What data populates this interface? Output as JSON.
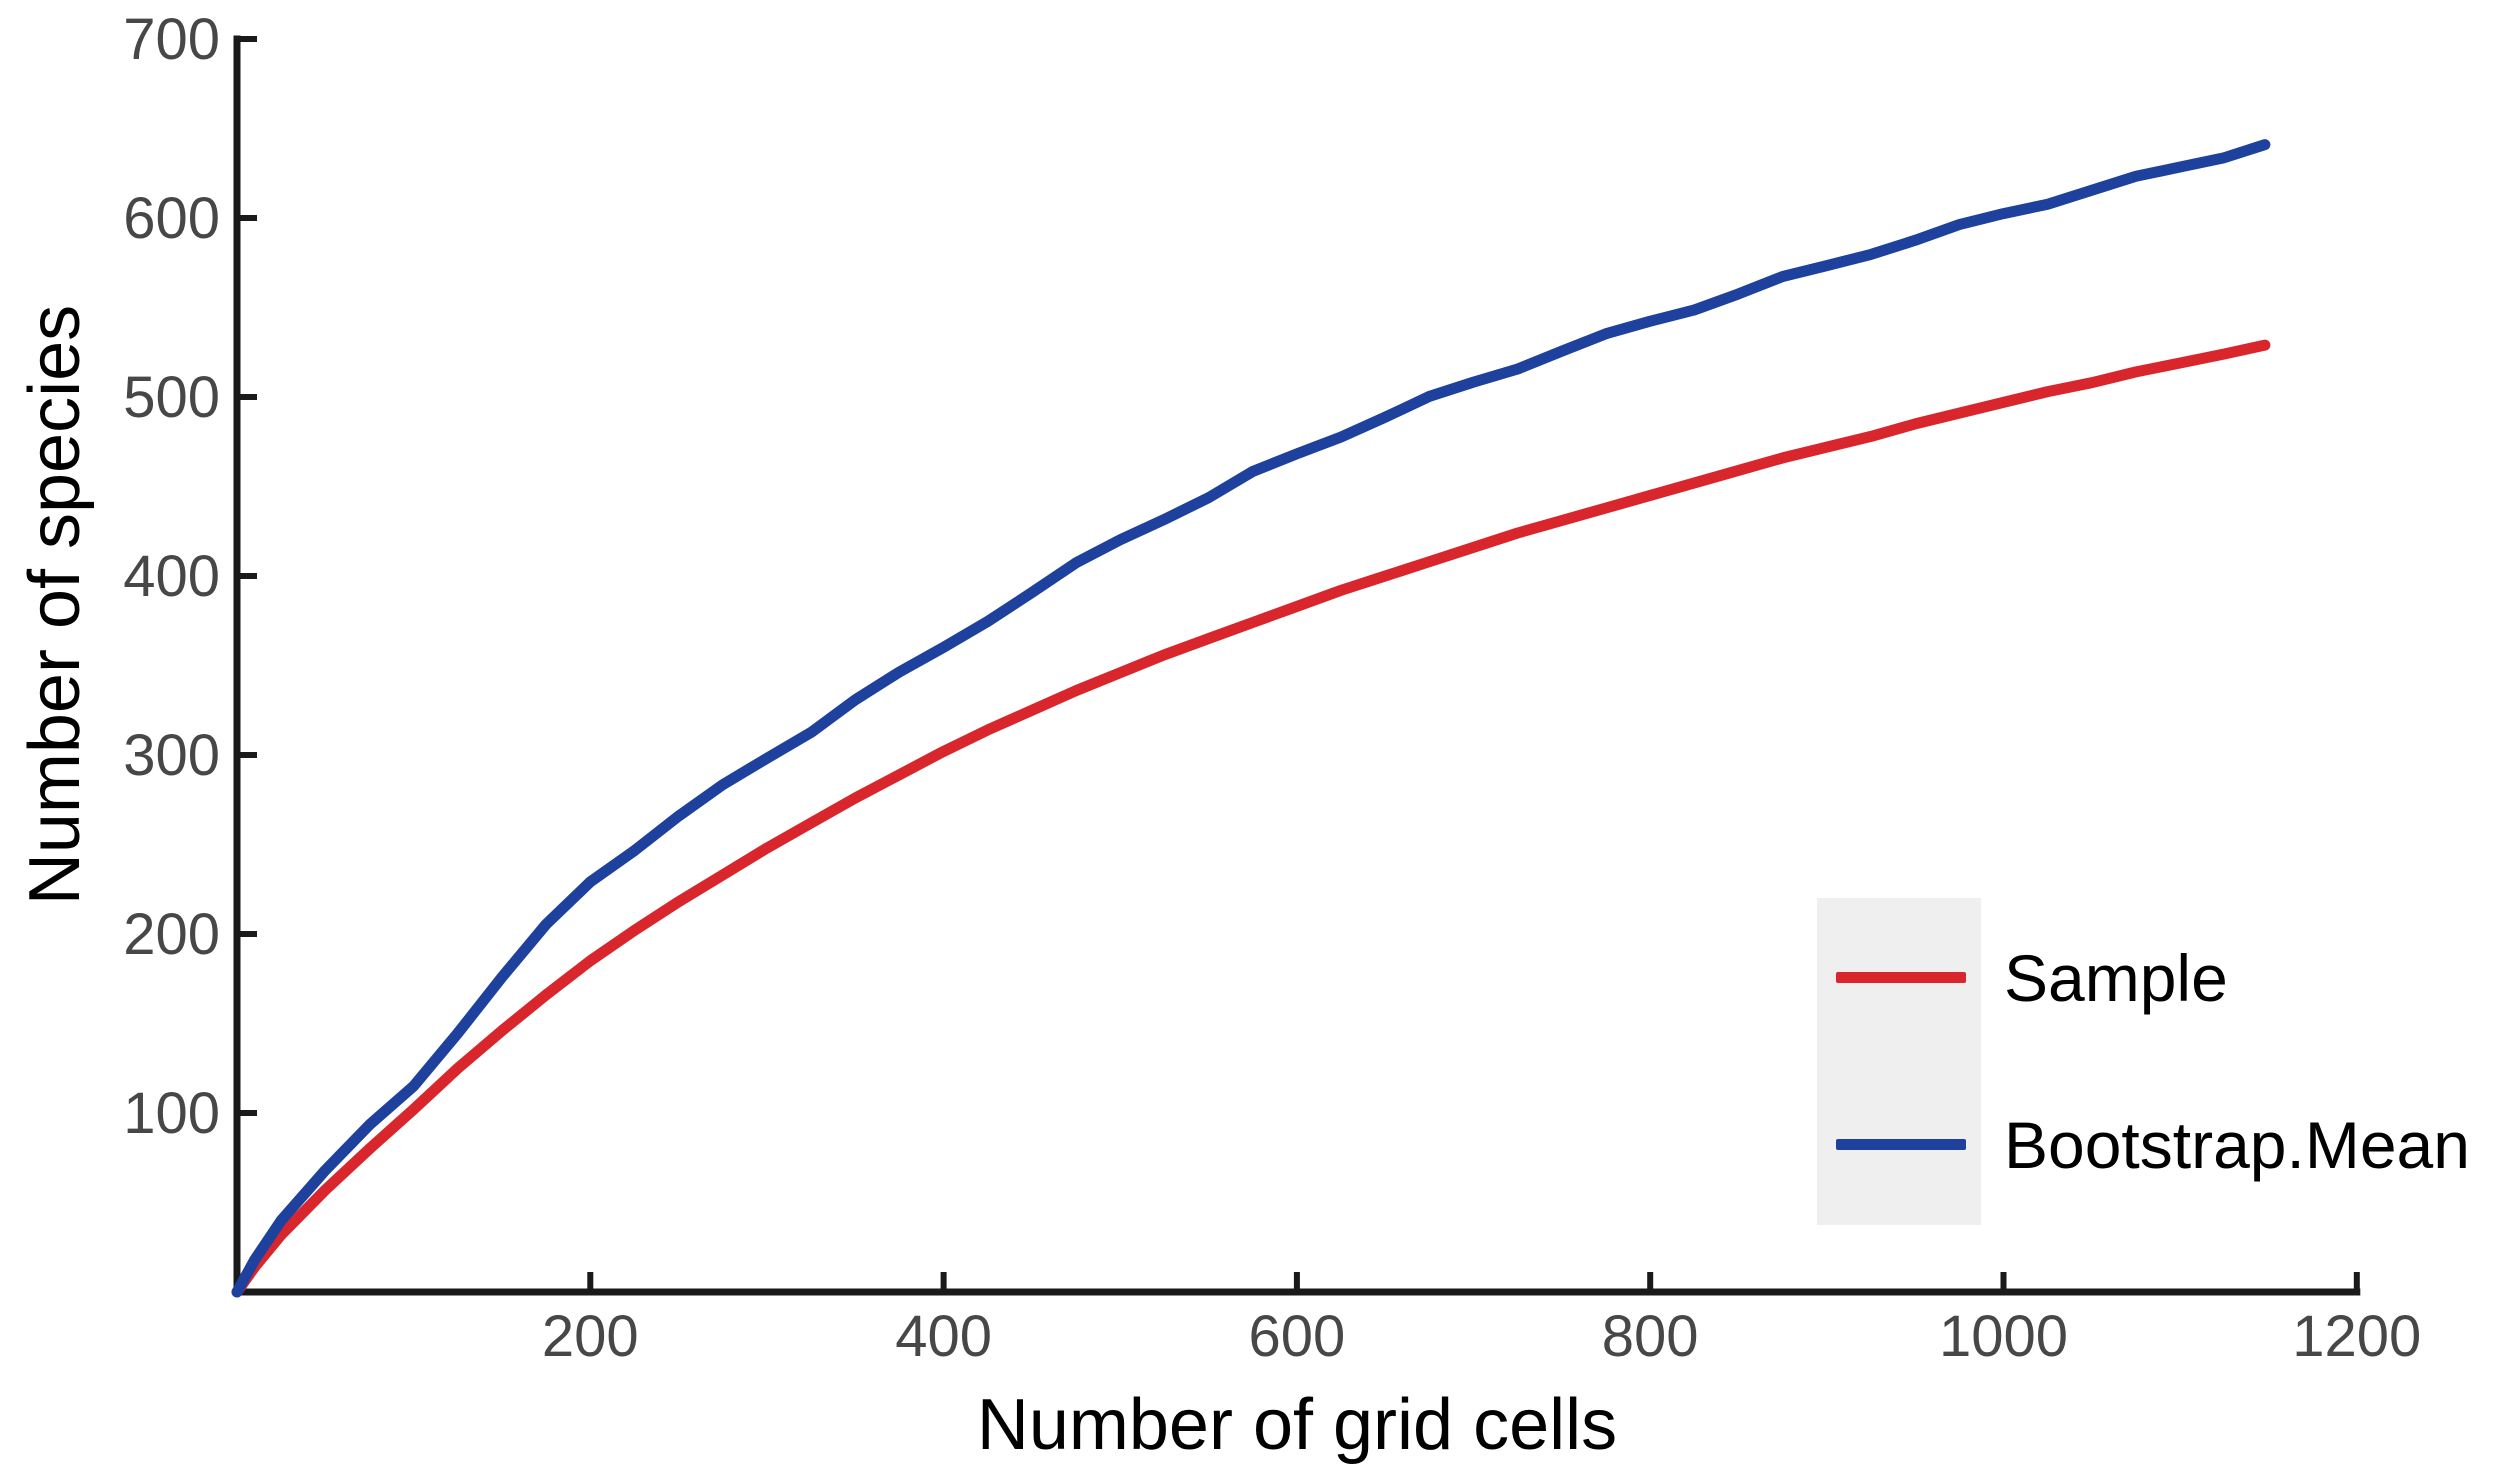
{
  "chart_data": {
    "type": "line",
    "title": "",
    "xlabel": "Number of grid cells",
    "ylabel": "Number of species",
    "xlim": [
      0,
      1200
    ],
    "ylim": [
      0,
      700
    ],
    "x_ticks": [
      200,
      400,
      600,
      800,
      1000,
      1200
    ],
    "y_ticks": [
      100,
      200,
      300,
      400,
      500,
      600,
      700
    ],
    "grid": false,
    "legend_position": "right-lower",
    "series": [
      {
        "name": "Sample",
        "color": "#d9262c",
        "style": "smooth",
        "points": [
          [
            0,
            0
          ],
          [
            10,
            14
          ],
          [
            25,
            32
          ],
          [
            50,
            57
          ],
          [
            75,
            80
          ],
          [
            100,
            102
          ],
          [
            125,
            125
          ],
          [
            150,
            146
          ],
          [
            175,
            166
          ],
          [
            200,
            185
          ],
          [
            225,
            202
          ],
          [
            250,
            218
          ],
          [
            275,
            233
          ],
          [
            300,
            248
          ],
          [
            325,
            262
          ],
          [
            350,
            276
          ],
          [
            375,
            289
          ],
          [
            400,
            302
          ],
          [
            425,
            314
          ],
          [
            450,
            325
          ],
          [
            475,
            336
          ],
          [
            500,
            346
          ],
          [
            525,
            356
          ],
          [
            550,
            365
          ],
          [
            575,
            374
          ],
          [
            600,
            383
          ],
          [
            625,
            392
          ],
          [
            650,
            400
          ],
          [
            675,
            408
          ],
          [
            700,
            416
          ],
          [
            725,
            424
          ],
          [
            750,
            431
          ],
          [
            775,
            438
          ],
          [
            800,
            445
          ],
          [
            825,
            452
          ],
          [
            850,
            459
          ],
          [
            875,
            466
          ],
          [
            900,
            472
          ],
          [
            925,
            478
          ],
          [
            950,
            485
          ],
          [
            975,
            491
          ],
          [
            1000,
            497
          ],
          [
            1025,
            503
          ],
          [
            1050,
            508
          ],
          [
            1075,
            514
          ],
          [
            1100,
            519
          ],
          [
            1125,
            524
          ],
          [
            1148,
            529
          ]
        ]
      },
      {
        "name": "Bootstrap.Mean",
        "color": "#1e419e",
        "style": "stepped-wiggly",
        "points": [
          [
            0,
            0
          ],
          [
            10,
            18
          ],
          [
            25,
            40
          ],
          [
            50,
            68
          ],
          [
            75,
            92
          ],
          [
            100,
            115
          ],
          [
            125,
            146
          ],
          [
            150,
            176
          ],
          [
            175,
            204
          ],
          [
            200,
            229
          ],
          [
            225,
            248
          ],
          [
            250,
            266
          ],
          [
            275,
            282
          ],
          [
            300,
            298
          ],
          [
            325,
            314
          ],
          [
            350,
            331
          ],
          [
            375,
            345
          ],
          [
            400,
            360
          ],
          [
            425,
            376
          ],
          [
            450,
            391
          ],
          [
            475,
            406
          ],
          [
            500,
            420
          ],
          [
            525,
            433
          ],
          [
            550,
            444
          ],
          [
            575,
            457
          ],
          [
            600,
            468
          ],
          [
            625,
            479
          ],
          [
            650,
            489
          ],
          [
            675,
            499
          ],
          [
            700,
            508
          ],
          [
            725,
            517
          ],
          [
            750,
            526
          ],
          [
            775,
            534
          ],
          [
            800,
            542
          ],
          [
            825,
            550
          ],
          [
            850,
            558
          ],
          [
            875,
            566
          ],
          [
            900,
            573
          ],
          [
            925,
            581
          ],
          [
            950,
            588
          ],
          [
            975,
            595
          ],
          [
            1000,
            602
          ],
          [
            1025,
            609
          ],
          [
            1050,
            616
          ],
          [
            1075,
            622
          ],
          [
            1100,
            628
          ],
          [
            1125,
            635
          ],
          [
            1148,
            641
          ]
        ]
      }
    ]
  },
  "axis": {
    "x_title": "Number of grid cells",
    "y_title": "Number of species",
    "x_tick_labels": [
      "200",
      "400",
      "600",
      "800",
      "1000",
      "1200"
    ],
    "y_tick_labels": [
      "100",
      "200",
      "300",
      "400",
      "500",
      "600",
      "700"
    ]
  },
  "legend": {
    "items": [
      {
        "label": "Sample",
        "color": "#d9262c"
      },
      {
        "label": "Bootstrap.Mean",
        "color": "#1e419e"
      }
    ]
  },
  "colors": {
    "sample_line": "#d9262c",
    "bootstrap_line": "#1e419e",
    "axis_line": "#1a1a1a",
    "tick_label": "#474747",
    "axis_title": "#000000",
    "legend_key_background": "#efefef",
    "background": "#ffffff"
  }
}
